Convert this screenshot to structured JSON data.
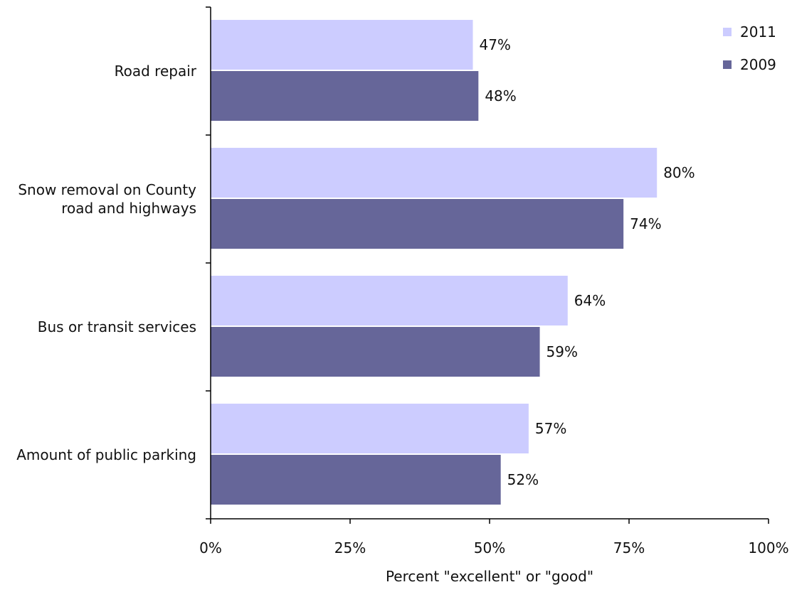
{
  "chart_data": {
    "type": "bar",
    "orientation": "horizontal",
    "categories": [
      "Road repair",
      "Snow removal on County road and highways",
      "Bus or transit services",
      "Amount of public parking"
    ],
    "category_lines": [
      [
        "Road repair"
      ],
      [
        "Snow removal on County",
        "road and highways"
      ],
      [
        "Bus or transit services"
      ],
      [
        "Amount of public parking"
      ]
    ],
    "series": [
      {
        "name": "2011",
        "values": [
          47,
          80,
          64,
          57
        ],
        "color": "#ccccff"
      },
      {
        "name": "2009",
        "values": [
          48,
          74,
          59,
          52
        ],
        "color": "#666699"
      }
    ],
    "value_suffix": "%",
    "xlabel": "Percent \"excellent\" or \"good\"",
    "ylabel": "",
    "xlim": [
      0,
      100
    ],
    "xticks": [
      0,
      25,
      50,
      75,
      100
    ],
    "xtick_labels": [
      "0%",
      "25%",
      "50%",
      "75%",
      "100%"
    ],
    "grid": false,
    "legend_position": "top-right"
  }
}
